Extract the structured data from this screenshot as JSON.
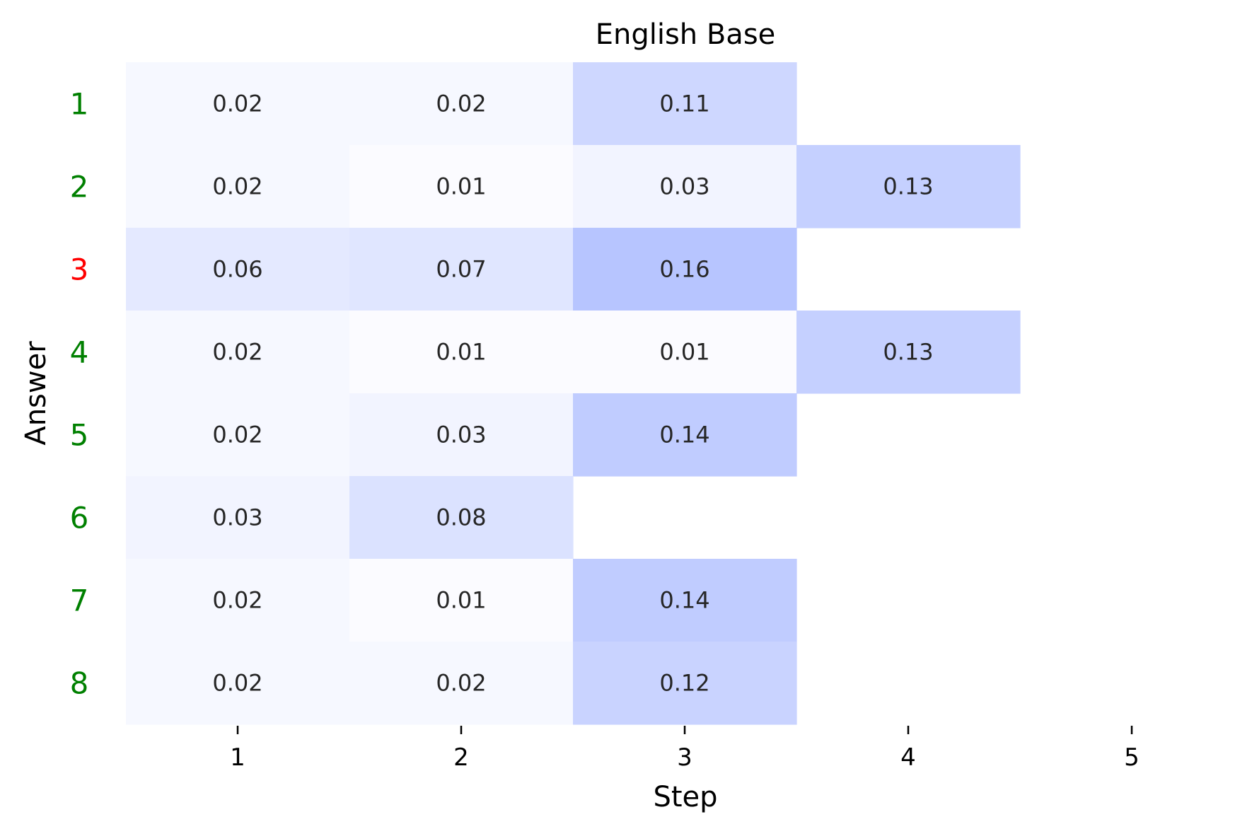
{
  "chart_data": {
    "type": "heatmap",
    "title": "English Base",
    "xlabel": "Step",
    "ylabel": "Answer",
    "x_categories": [
      "1",
      "2",
      "3",
      "4",
      "5"
    ],
    "y_categories": [
      "1",
      "2",
      "3",
      "4",
      "5",
      "6",
      "7",
      "8"
    ],
    "y_category_colors": [
      "#008000",
      "#008000",
      "#ff0000",
      "#008000",
      "#008000",
      "#008000",
      "#008000",
      "#008000"
    ],
    "values": [
      [
        0.02,
        0.02,
        0.11,
        null,
        null
      ],
      [
        0.02,
        0.01,
        0.03,
        0.13,
        null
      ],
      [
        0.06,
        0.07,
        0.16,
        null,
        null
      ],
      [
        0.02,
        0.01,
        0.01,
        0.13,
        null
      ],
      [
        0.02,
        0.03,
        0.14,
        null,
        null
      ],
      [
        0.03,
        0.08,
        null,
        null,
        null
      ],
      [
        0.02,
        0.01,
        0.14,
        null,
        null
      ],
      [
        0.02,
        0.02,
        0.12,
        null,
        null
      ]
    ],
    "color_scale": {
      "low": "#ffffff",
      "high": "#8fa4ff",
      "vmin": 0,
      "vmax": 0.25
    },
    "grid": false
  }
}
